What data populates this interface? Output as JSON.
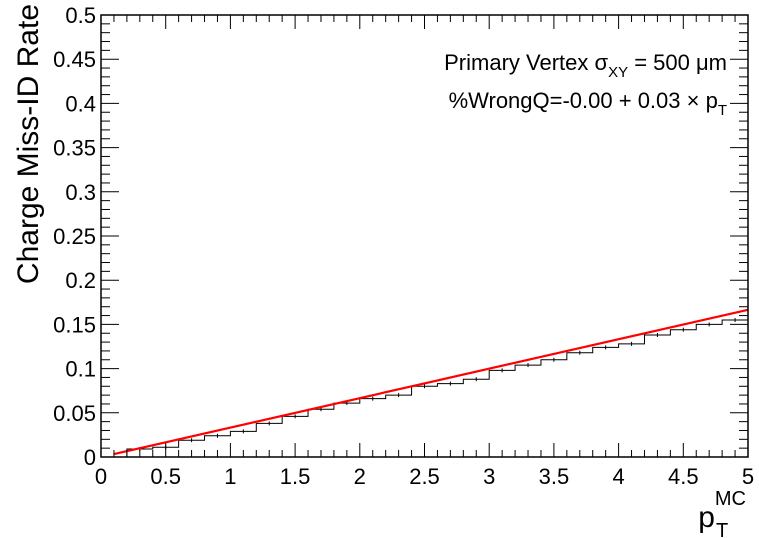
{
  "chart_data": {
    "type": "histogram",
    "xlabel": "p",
    "xlabel_sub": "T",
    "xlabel_sup": "MC",
    "ylabel": "Charge Miss-ID Rate",
    "xlim": [
      0,
      5
    ],
    "ylim": [
      0,
      0.5
    ],
    "x_ticks": [
      "0",
      "0.5",
      "1",
      "1.5",
      "2",
      "2.5",
      "3",
      "3.5",
      "4",
      "4.5",
      "5"
    ],
    "y_ticks": [
      "0",
      "0.05",
      "0.1",
      "0.15",
      "0.2",
      "0.25",
      "0.3",
      "0.35",
      "0.4",
      "0.45",
      "0.5"
    ],
    "grid": false,
    "bin_width": 0.2,
    "bin_low_edges": [
      0.2,
      0.4,
      0.6,
      0.8,
      1.0,
      1.2,
      1.4,
      1.6,
      1.8,
      2.0,
      2.2,
      2.4,
      2.6,
      2.8,
      3.0,
      3.2,
      3.4,
      3.6,
      3.8,
      4.0,
      4.2,
      4.4,
      4.6,
      4.8
    ],
    "values": [
      0.009,
      0.011,
      0.019,
      0.024,
      0.029,
      0.038,
      0.046,
      0.054,
      0.061,
      0.066,
      0.07,
      0.08,
      0.083,
      0.088,
      0.098,
      0.104,
      0.11,
      0.118,
      0.124,
      0.128,
      0.138,
      0.144,
      0.15,
      0.155
    ],
    "fit": {
      "intercept": 0.0,
      "slope": 0.0333,
      "color": "#ff0000"
    },
    "histogram_color": "#000000",
    "annotations": {
      "line1_prefix": "Primary Vertex ",
      "line1_symbol": "σ",
      "line1_sub": "XY",
      "line1_suffix": " = 500 μm",
      "line2_prefix": "%WrongQ=-0.00 + 0.03 × p",
      "line2_sub": "T"
    }
  }
}
